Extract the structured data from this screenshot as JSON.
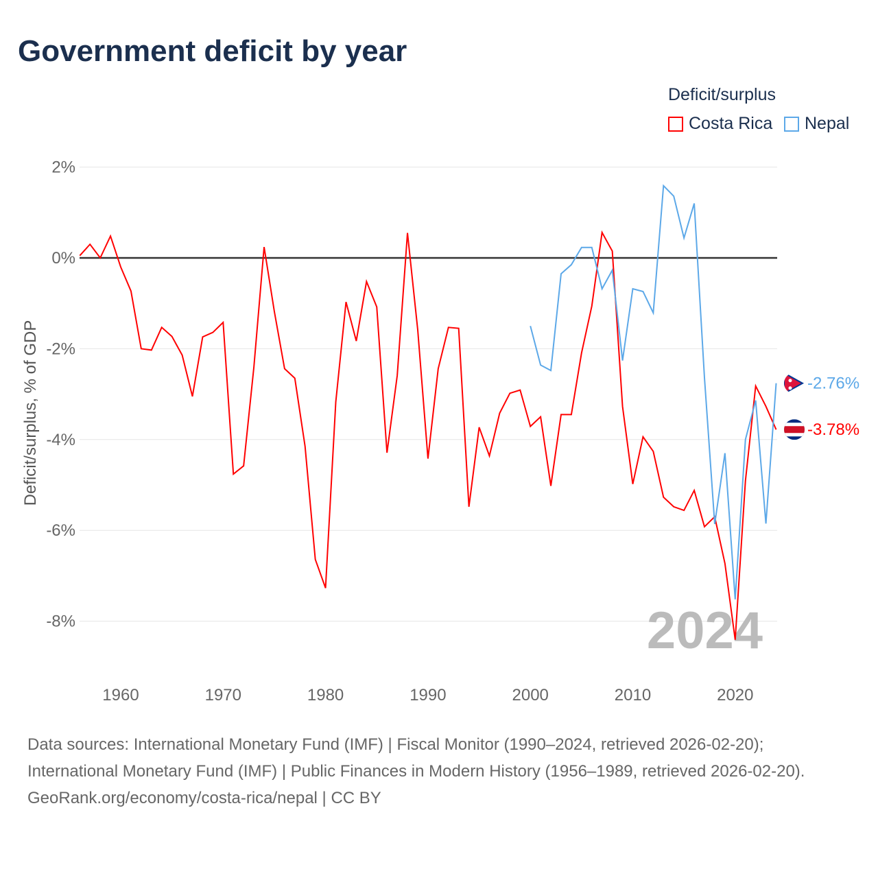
{
  "chart_data": {
    "type": "line",
    "title": "Government deficit by year",
    "ylabel": "Deficit/surplus, % of GDP",
    "xlabel": "",
    "ylim": [
      -9,
      2.5
    ],
    "xlim": [
      1956,
      2024
    ],
    "yticks": [
      2,
      0,
      -2,
      -4,
      -6,
      -8
    ],
    "ytick_labels": [
      "2%",
      "0%",
      "-2%",
      "-4%",
      "-6%",
      "-8%"
    ],
    "xticks": [
      1960,
      1970,
      1980,
      1990,
      2000,
      2010,
      2020
    ],
    "xtick_labels": [
      "1960",
      "1970",
      "1980",
      "1990",
      "2000",
      "2010",
      "2020"
    ],
    "grid": true,
    "legend_title": "Deficit/surplus",
    "legend_position": "top-right",
    "year_watermark": "2024",
    "series": [
      {
        "name": "Costa Rica",
        "color": "#ff0000",
        "end_label": "-3.78%",
        "start_year": 1956,
        "values": [
          0.05,
          0.3,
          0,
          0.48,
          -0.2,
          -0.73,
          -2.0,
          -2.03,
          -1.53,
          -1.73,
          -2.14,
          -3.05,
          -1.74,
          -1.64,
          -1.42,
          -4.76,
          -4.58,
          -2.41,
          0.24,
          -1.18,
          -2.44,
          -2.65,
          -4.15,
          -6.64,
          -7.27,
          -3.17,
          -0.97,
          -1.83,
          -0.52,
          -1.08,
          -4.29,
          -2.59,
          0.55,
          -1.58,
          -4.42,
          -2.44,
          -1.53,
          -1.55,
          -5.48,
          -3.73,
          -4.36,
          -3.42,
          -2.98,
          -2.91,
          -3.71,
          -3.5,
          -5.02,
          -3.45,
          -3.45,
          -2.09,
          -1.06,
          0.56,
          0.15,
          -3.27,
          -4.98,
          -3.94,
          -4.26,
          -5.27,
          -5.48,
          -5.56,
          -5.12,
          -5.92,
          -5.7,
          -6.73,
          -8.41,
          -4.91,
          -2.82,
          -3.27,
          -3.78
        ]
      },
      {
        "name": "Nepal",
        "color": "#5ca8e8",
        "end_label": "-2.76%",
        "start_year": 2000,
        "values": [
          -1.5,
          -2.36,
          -2.48,
          -0.35,
          -0.15,
          0.23,
          0.23,
          -0.68,
          -0.27,
          -2.26,
          -0.68,
          -0.74,
          -1.21,
          1.59,
          1.36,
          0.44,
          1.2,
          -2.64,
          -5.86,
          -4.3,
          -7.52,
          -4.0,
          -3.14,
          -5.85,
          -2.76
        ]
      }
    ]
  },
  "footer": {
    "sources": "Data sources: International Monetary Fund (IMF) | Fiscal Monitor (1990–2024, retrieved 2026-02-20); International Monetary Fund (IMF) | Public Finances in Modern History (1956–1989, retrieved 2026-02-20).",
    "credit": "GeoRank.org/economy/costa-rica/nepal | CC BY"
  }
}
